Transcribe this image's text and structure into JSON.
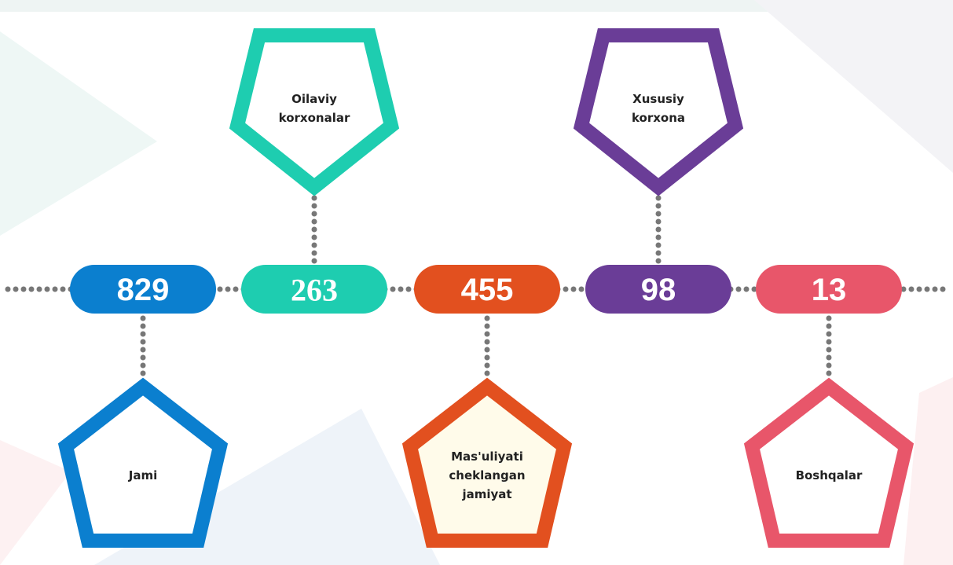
{
  "items": [
    {
      "label": [
        "Jami"
      ],
      "value": 829,
      "color": "#0b7fcf"
    },
    {
      "label": [
        "Oilaviy",
        "korxonalar"
      ],
      "value": 263,
      "color": "#1ecdb0"
    },
    {
      "label": [
        "Mas'uliyati",
        "cheklangan",
        "jamiyat"
      ],
      "value": 455,
      "color": "#e2501f"
    },
    {
      "label": [
        "Xususiy",
        "korxona"
      ],
      "value": 98,
      "color": "#6a3d97"
    },
    {
      "label": [
        "Boshqalar"
      ],
      "value": 13,
      "color": "#e8566a"
    }
  ]
}
